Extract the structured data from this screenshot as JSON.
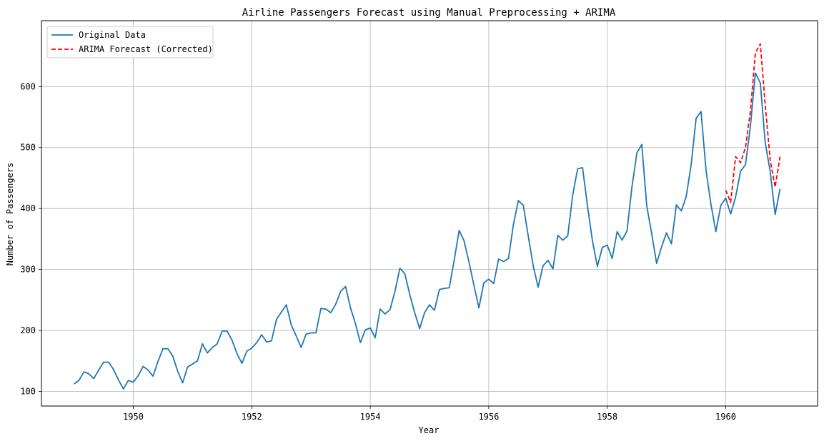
{
  "chart_data": {
    "type": "line",
    "title": "Airline Passengers Forecast using Manual Preprocessing + ARIMA",
    "xlabel": "Year",
    "ylabel": "Number of Passengers",
    "xlim": [
      1948.45,
      1961.55
    ],
    "ylim": [
      76,
      708
    ],
    "grid": true,
    "legend_position": "top-left",
    "x_ticks": [
      1950,
      1952,
      1954,
      1956,
      1958,
      1960
    ],
    "y_ticks": [
      100,
      200,
      300,
      400,
      500,
      600
    ],
    "series": [
      {
        "name": "Original Data",
        "color": "#1f77b4",
        "style": "solid",
        "x_start": 1949.0,
        "x_step": 0.08333333,
        "values": [
          112,
          118,
          132,
          129,
          121,
          135,
          148,
          148,
          136,
          119,
          104,
          118,
          115,
          126,
          141,
          135,
          125,
          149,
          170,
          170,
          158,
          133,
          114,
          140,
          145,
          150,
          178,
          163,
          172,
          178,
          199,
          199,
          184,
          162,
          146,
          166,
          171,
          180,
          193,
          181,
          183,
          218,
          230,
          242,
          209,
          191,
          172,
          194,
          196,
          196,
          236,
          235,
          229,
          243,
          264,
          272,
          237,
          211,
          180,
          201,
          204,
          188,
          235,
          227,
          234,
          264,
          302,
          293,
          259,
          229,
          203,
          229,
          242,
          233,
          267,
          269,
          270,
          315,
          364,
          347,
          312,
          274,
          237,
          278,
          284,
          277,
          317,
          313,
          318,
          374,
          413,
          405,
          355,
          306,
          271,
          306,
          315,
          301,
          356,
          348,
          355,
          422,
          465,
          467,
          404,
          347,
          305,
          336,
          340,
          318,
          362,
          348,
          363,
          435,
          491,
          505,
          404,
          359,
          310,
          337,
          360,
          342,
          406,
          396,
          420,
          472,
          548,
          559,
          463,
          407,
          362,
          405,
          417,
          391,
          419,
          461,
          472,
          535,
          622,
          606,
          508,
          461,
          390,
          432
        ]
      },
      {
        "name": "ARIMA Forecast (Corrected)",
        "color": "#ff0000",
        "style": "dashed",
        "x_start": 1960.0,
        "x_step": 0.08333333,
        "values": [
          430,
          410,
          485,
          475,
          500,
          560,
          655,
          670,
          570,
          480,
          435,
          485
        ]
      }
    ]
  }
}
